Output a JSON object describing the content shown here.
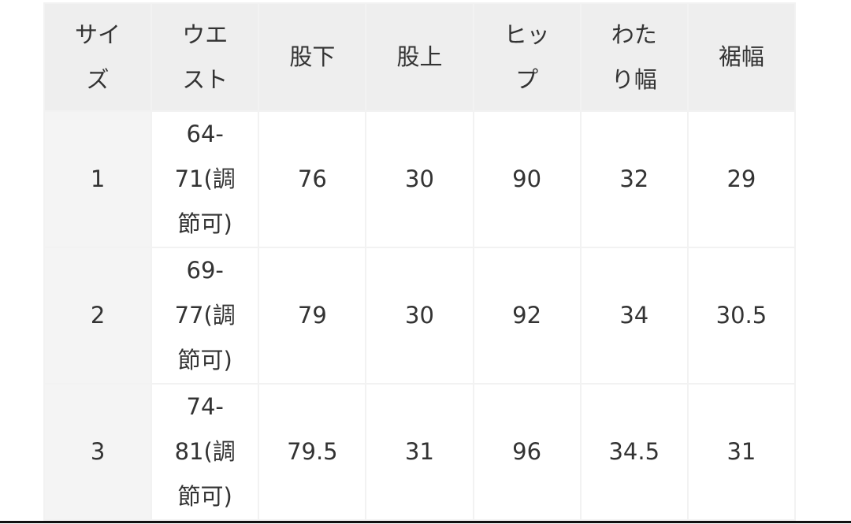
{
  "table": {
    "headers": [
      "サイズ",
      "ウエスト",
      "股下",
      "股上",
      "ヒップ",
      "わたり幅",
      "裾幅"
    ],
    "rows": [
      [
        "1",
        "64-71(調節可)",
        "76",
        "30",
        "90",
        "32",
        "29"
      ],
      [
        "2",
        "69-77(調節可)",
        "79",
        "30",
        "92",
        "34",
        "30.5"
      ],
      [
        "3",
        "74-81(調節可)",
        "79.5",
        "31",
        "96",
        "34.5",
        "31"
      ]
    ]
  },
  "colors": {
    "header_bg": "#eeeeee",
    "size_col_bg": "#f4f4f4",
    "text": "#333333"
  }
}
